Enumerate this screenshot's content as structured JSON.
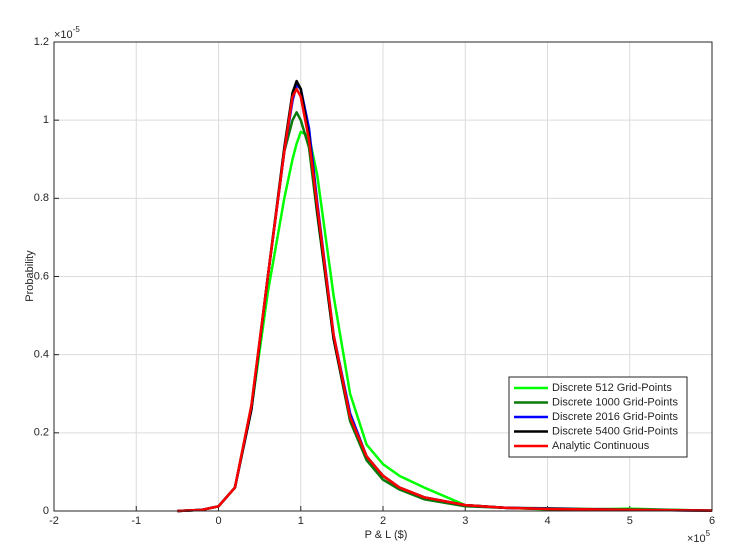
{
  "chart_data": {
    "type": "line",
    "x_label": "P & L ($)",
    "y_label": "Probability",
    "x_multiplier": {
      "base": "×10",
      "exponent": "5"
    },
    "y_multiplier": {
      "base": "×10",
      "exponent": "-5"
    },
    "x": [
      -0.5,
      -0.2,
      0,
      0.2,
      0.4,
      0.6,
      0.8,
      0.9,
      0.95,
      1.0,
      1.1,
      1.2,
      1.4,
      1.6,
      1.8,
      2.0,
      2.2,
      2.5,
      3,
      3.5,
      4,
      4.5,
      5,
      5.5,
      6
    ],
    "series": [
      {
        "name": "Discrete 512 Grid-Points",
        "color": "#00ff00",
        "values": [
          0,
          0.003,
          0.012,
          0.06,
          0.26,
          0.56,
          0.8,
          0.9,
          0.94,
          0.97,
          0.96,
          0.86,
          0.55,
          0.3,
          0.17,
          0.12,
          0.09,
          0.06,
          0.015,
          0.008,
          0.004,
          0.004,
          0.006,
          0.003,
          0.001
        ]
      },
      {
        "name": "Discrete 1000 Grid-Points",
        "color": "#0a7a0a",
        "values": [
          0,
          0.003,
          0.012,
          0.06,
          0.27,
          0.6,
          0.92,
          1.0,
          1.02,
          1.0,
          0.93,
          0.76,
          0.44,
          0.23,
          0.13,
          0.08,
          0.055,
          0.03,
          0.012,
          0.008,
          0.007,
          0.005,
          0.004,
          0.003,
          0.001
        ]
      },
      {
        "name": "Discrete 2016 Grid-Points",
        "color": "#0000ff",
        "values": [
          0,
          0.003,
          0.012,
          0.06,
          0.26,
          0.6,
          0.92,
          1.05,
          1.09,
          1.08,
          0.98,
          0.79,
          0.45,
          0.25,
          0.14,
          0.09,
          0.06,
          0.035,
          0.015,
          0.008,
          0.006,
          0.004,
          0.003,
          0.002,
          0.001
        ]
      },
      {
        "name": "Discrete 5400 Grid-Points",
        "color": "#000000",
        "values": [
          0,
          0.003,
          0.012,
          0.06,
          0.26,
          0.6,
          0.93,
          1.07,
          1.1,
          1.08,
          0.96,
          0.77,
          0.44,
          0.24,
          0.14,
          0.09,
          0.06,
          0.035,
          0.015,
          0.008,
          0.005,
          0.004,
          0.003,
          0.002,
          0.001
        ]
      },
      {
        "name": "Analytic Continuous",
        "color": "#ff0000",
        "values": [
          0,
          0.003,
          0.012,
          0.06,
          0.27,
          0.6,
          0.92,
          1.06,
          1.08,
          1.06,
          0.95,
          0.78,
          0.45,
          0.24,
          0.14,
          0.09,
          0.06,
          0.035,
          0.015,
          0.008,
          0.005,
          0.004,
          0.003,
          0.002,
          0.001
        ]
      }
    ],
    "xlim": [
      -2,
      6
    ],
    "ylim": [
      0,
      1.2
    ],
    "xticks": [
      -2,
      -1,
      0,
      1,
      2,
      3,
      4,
      5,
      6
    ],
    "yticks": [
      0,
      0.2,
      0.4,
      0.6,
      0.8,
      1,
      1.2
    ],
    "grid": true,
    "legend_position": "lower right"
  }
}
